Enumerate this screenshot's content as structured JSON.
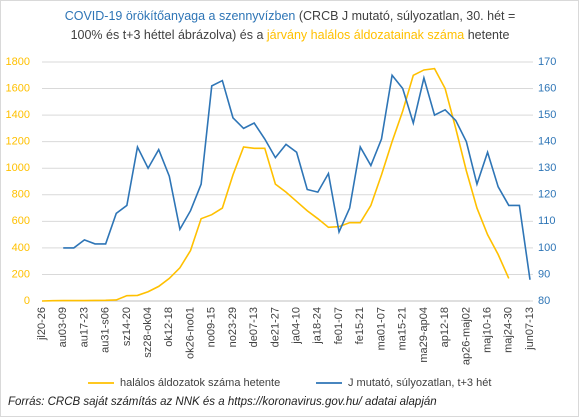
{
  "chart_data": {
    "type": "line",
    "title_lines": [
      [
        {
          "text": "COVID-19 örökítőanyaga a szennyvízben",
          "color": "#2E75B6"
        },
        {
          "text": " (CRCB J mutató, súlyozatlan, 30. hét =",
          "color": "#404040"
        }
      ],
      [
        {
          "text": "100% és t+3 héttel ábrázolva) és a ",
          "color": "#404040"
        },
        {
          "text": "járvány halálos áldozatainak száma",
          "color": "#FFC000"
        },
        {
          "text": " hetente",
          "color": "#404040"
        }
      ]
    ],
    "categories": [
      "jl20-26",
      null,
      "au03-09",
      null,
      "au17-23",
      null,
      "au31-s06",
      null,
      "sz14-20",
      null,
      "sz28-ok04",
      null,
      "ok12-18",
      null,
      "ok26-no01",
      null,
      "no09-15",
      null,
      "no23-29",
      null,
      "de07-13",
      null,
      "de21-27",
      null,
      "ja04-10",
      null,
      "ja18-24",
      null,
      "fe01-07",
      null,
      "fe15-21",
      null,
      "ma01-07",
      null,
      "ma15-21",
      null,
      "ma29-ap04",
      null,
      "ap12-18",
      null,
      "ap26-maj02",
      null,
      "maj10-16",
      null,
      "maj24-30",
      null,
      "jun07-13"
    ],
    "series": [
      {
        "name": "halálos áldozatok száma hetente",
        "color": "#FFC000",
        "axis": "y",
        "values": [
          0,
          2,
          3,
          3,
          3,
          4,
          5,
          8,
          40,
          42,
          70,
          110,
          170,
          250,
          380,
          620,
          650,
          700,
          950,
          1160,
          1150,
          1150,
          880,
          820,
          750,
          680,
          620,
          555,
          560,
          590,
          590,
          720,
          950,
          1200,
          1430,
          1700,
          1740,
          1750,
          1600,
          1300,
          980,
          700,
          500,
          350,
          170,
          null,
          null
        ]
      },
      {
        "name": "J mutató, súlyozatlan, t+3 hét",
        "color": "#2E75B6",
        "axis": "y2",
        "values": [
          null,
          null,
          100,
          100,
          103,
          101.5,
          101.5,
          113,
          116,
          138,
          130,
          137,
          127,
          107,
          114,
          124,
          161,
          163,
          149,
          145,
          147,
          141,
          134,
          139,
          136,
          122,
          121,
          128,
          106,
          115,
          138,
          131,
          141,
          165,
          160,
          147,
          164,
          150,
          152,
          148,
          140,
          124,
          136,
          123,
          116,
          116,
          88
        ]
      }
    ],
    "ylim": [
      0,
      1800
    ],
    "yticks": [
      0,
      200,
      400,
      600,
      800,
      1000,
      1200,
      1400,
      1600,
      1800
    ],
    "y2lim": [
      80,
      170
    ],
    "y2ticks": [
      80,
      90,
      100,
      110,
      120,
      130,
      140,
      150,
      160,
      170
    ],
    "ytick_color": "#FFC000",
    "y2tick_color": "#2E75B6",
    "grid": true,
    "legend": "bottom",
    "source": "Forrás: CRCB saját számítás az NNK és a https://koronavirus.gov.hu/ adatai alapján"
  }
}
